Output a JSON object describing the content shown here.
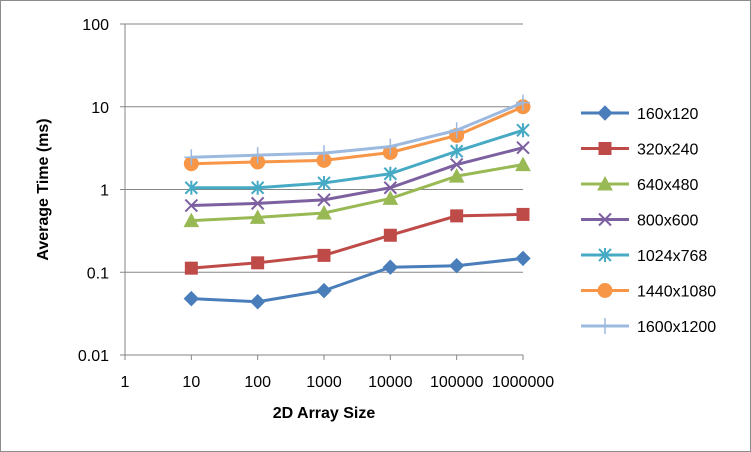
{
  "chart_data": {
    "type": "line",
    "title": "",
    "xlabel": "2D Array Size",
    "ylabel": "Average Time (ms)",
    "yscale": "log",
    "ylim": [
      0.01,
      100
    ],
    "grid": "horizontal major gridlines",
    "legend": "right",
    "x_tick_labels": [
      "1",
      "10",
      "100",
      "1000",
      "10000",
      "100000",
      "1000000"
    ],
    "y_tick_labels": [
      "0.01",
      "0.1",
      "1",
      "10",
      "100"
    ],
    "y_ticks": [
      0.01,
      0.1,
      1,
      10,
      100
    ],
    "x": [
      "10",
      "100",
      "1000",
      "10000",
      "100000",
      "1000000"
    ],
    "series": [
      {
        "name": "160x120",
        "color": "#4a7ebb",
        "marker": "diamond",
        "values": [
          0.048,
          0.044,
          0.06,
          0.115,
          0.12,
          0.147
        ]
      },
      {
        "name": "320x240",
        "color": "#be4b48",
        "marker": "square",
        "values": [
          0.112,
          0.13,
          0.16,
          0.28,
          0.48,
          0.5
        ]
      },
      {
        "name": "640x480",
        "color": "#98b954",
        "marker": "triangle",
        "values": [
          0.42,
          0.46,
          0.52,
          0.78,
          1.45,
          2.0
        ]
      },
      {
        "name": "800x600",
        "color": "#7d60a0",
        "marker": "x",
        "values": [
          0.64,
          0.68,
          0.75,
          1.05,
          2.0,
          3.2
        ]
      },
      {
        "name": "1024x768",
        "color": "#46aac5",
        "marker": "star",
        "values": [
          1.05,
          1.05,
          1.2,
          1.55,
          2.9,
          5.2
        ]
      },
      {
        "name": "1440x1080",
        "color": "#f79646",
        "marker": "circle",
        "values": [
          2.05,
          2.15,
          2.25,
          2.8,
          4.5,
          10.0
        ]
      },
      {
        "name": "1600x1200",
        "color": "#9cb9e0",
        "marker": "plus",
        "values": [
          2.45,
          2.6,
          2.75,
          3.3,
          5.2,
          11.2
        ]
      }
    ]
  }
}
